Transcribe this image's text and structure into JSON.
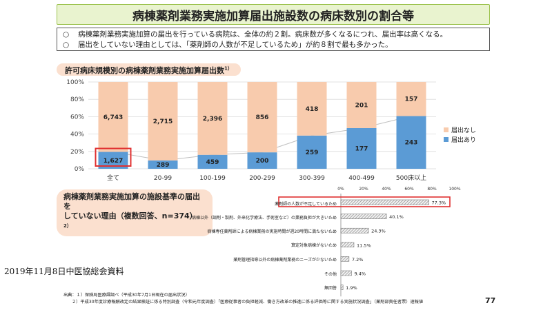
{
  "title": "病棟薬剤業務実施加算届出施設数の病床数別の割合等",
  "summary": {
    "bullet": "○",
    "lines": [
      "病棟薬剤業務実施加算の届出を行っている病院は、全体の約２割。病床数が多くなるにつれ、届出率は高くなる。",
      "届出をしていない理由としては、「薬剤師の人数が不足しているため」が約８割で最も多かった。"
    ]
  },
  "chart_data": [
    {
      "type": "bar",
      "title": "許可病床規模別の病棟薬剤業務実施加算届出数",
      "title_note": "1）",
      "categories": [
        "全て",
        "20-99",
        "100-199",
        "200-299",
        "300-399",
        "400-499",
        "500床以上"
      ],
      "ytick_labels": [
        "0%",
        "20%",
        "40%",
        "60%",
        "80%",
        "100%"
      ],
      "ylim": [
        0,
        100
      ],
      "grid": true,
      "legend_position": "right",
      "series": [
        {
          "name": "届出あり",
          "values": [
            1627,
            289,
            459,
            200,
            259,
            177,
            243
          ],
          "color": "#5b9bd5"
        },
        {
          "name": "届出なし",
          "values": [
            6743,
            2715,
            2396,
            856,
            418,
            201,
            157
          ],
          "color": "#f8cbad"
        }
      ],
      "highlight_category": "全て",
      "highlight_color": "#e03030"
    },
    {
      "type": "bar",
      "title": "病棟薬剤業務実施加算の施設基準の届出をしていない理由（複数回答、n=374）",
      "title_lines": [
        "病棟薬剤業務実施加算の施設基準の届出を",
        "していない理由（複数回答、n=374）"
      ],
      "title_note": "2）",
      "orientation": "horizontal",
      "categories": [
        "薬剤師の人数が不足しているため",
        "病棟以外（調剤・製剤、外来化学療法、手術室など）の業務負担が大きいため",
        "病棟専任薬剤師による病棟業務の実施時間が週20時間に満たないため",
        "算定対象病棟がないため",
        "薬剤管理指導以外の病棟薬剤業務のニーズが少ないため",
        "その他",
        "無回答"
      ],
      "values": [
        77.3,
        40.1,
        24.3,
        11.5,
        7.2,
        9.4,
        1.9
      ],
      "value_labels": [
        "77.3%",
        "40.1%",
        "24.3%",
        "11.5%",
        "7.2%",
        "9.4%",
        "1.9%"
      ],
      "xtick_labels": [
        "0%",
        "20%",
        "40%",
        "60%",
        "80%",
        "100%"
      ],
      "xlim": [
        0,
        100
      ],
      "highlight_category": "薬剤師の人数が不足しているため",
      "highlight_color": "#e03030"
    }
  ],
  "source": {
    "lines": [
      "出典：１）保険局医療課調べ（平成30年7月1日現在の届出状況）",
      "２）平成30年度診療報酬改定の結果検証に係る特別調査（令和元年度調査）「医療従事者の負担軽減、働き方改革の推進に係る評価等に関する実施状況調査」（薬剤部責任者票）速報値"
    ]
  },
  "meeting_note": "2019年11月8日中医協総会資料",
  "page_number": "77"
}
